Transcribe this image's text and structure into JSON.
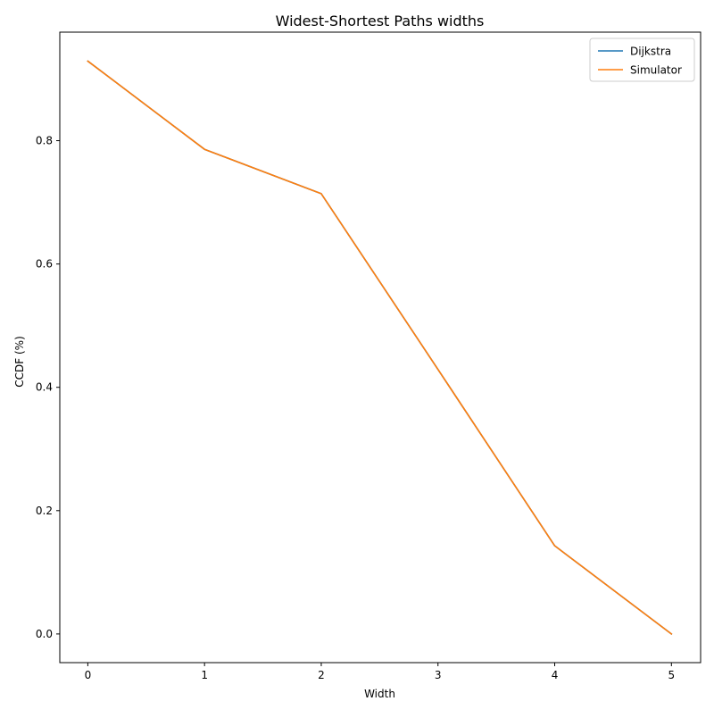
{
  "chart_data": {
    "type": "line",
    "title": "Widest-Shortest Paths widths",
    "xlabel": "Width",
    "ylabel": "CCDF (%)",
    "x": [
      0,
      1,
      2,
      3,
      4,
      5
    ],
    "xlim": [
      -0.24,
      5.25
    ],
    "ylim": [
      -0.0465,
      0.976
    ],
    "xticks": [
      0,
      1,
      2,
      3,
      4,
      5
    ],
    "xtick_labels": [
      "0",
      "1",
      "2",
      "3",
      "4",
      "5"
    ],
    "yticks": [
      0.0,
      0.2,
      0.4,
      0.6,
      0.8
    ],
    "ytick_labels": [
      "0.0",
      "0.2",
      "0.4",
      "0.6",
      "0.8"
    ],
    "grid": false,
    "legend_position": "top-right",
    "series": [
      {
        "name": "Dijkstra",
        "color": "#1f77b4",
        "values": [
          0.929,
          0.786,
          0.714,
          0.429,
          0.143,
          0.0
        ]
      },
      {
        "name": "Simulator",
        "color": "#ff7f0e",
        "values": [
          0.929,
          0.786,
          0.714,
          0.429,
          0.143,
          0.0
        ]
      }
    ]
  }
}
